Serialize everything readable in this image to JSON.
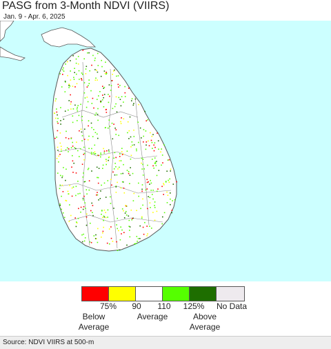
{
  "title": "PASG from 3-Month NDVI (VIIRS)",
  "subtitle": "Jan. 9 - Apr. 6, 2025",
  "legend": {
    "ticks": [
      "75%",
      "90",
      "110",
      "125%",
      "No Data"
    ],
    "categories": [
      {
        "line1": "Below",
        "line2": "Average"
      },
      {
        "line1": "Average",
        "line2": ""
      },
      {
        "line1": "Above",
        "line2": "Average"
      }
    ],
    "colors": [
      "#ff0000",
      "#ffff00",
      "#ffffff",
      "#55ff00",
      "#1e6e00",
      "#eeeaee"
    ]
  },
  "map_colors": {
    "ocean": "#ccffff",
    "land": "#ffffff",
    "india_land": "#ffffff",
    "boundary": "#888888",
    "coast": "#555555"
  },
  "source": "Source: NDVI VIIRS at 500-m"
}
